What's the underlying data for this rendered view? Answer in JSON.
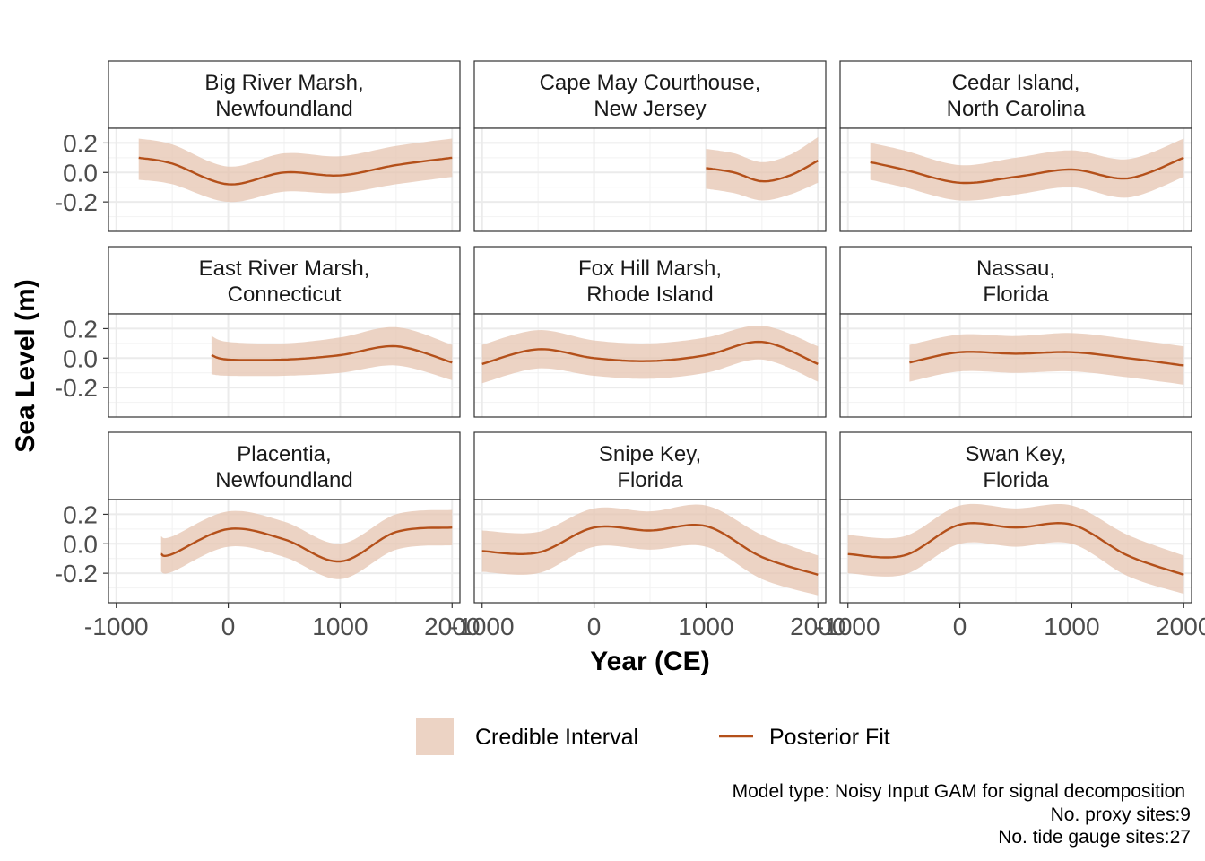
{
  "chart_data": {
    "type": "line",
    "facet_layout": "3x3 grid",
    "xlabel": "Year (CE)",
    "ylabel": "Sea Level (m)",
    "xlim": [
      -1070,
      2070
    ],
    "ylim": [
      -0.4,
      0.3
    ],
    "x_ticks": [
      -1000,
      0,
      1000,
      2000
    ],
    "x_tick_labels": [
      "-1000",
      "0",
      "1000",
      "2000"
    ],
    "y_ticks": [
      -0.2,
      0.0,
      0.2
    ],
    "y_tick_labels": [
      "-0.2",
      "0.0",
      "0.2"
    ],
    "grid": true,
    "colors": {
      "line": "#b4501a",
      "band": "#e6c4b0",
      "strip_bg": "#ffffff",
      "panel_border": "#333333",
      "grid": "#ebebeb"
    },
    "panels": [
      {
        "title": "Big River Marsh,\nNewfoundland",
        "title_lines": [
          "Big River Marsh,",
          "Newfoundland"
        ],
        "x": [
          -800,
          -500,
          0,
          500,
          1000,
          1500,
          2000
        ],
        "y": [
          0.1,
          0.06,
          -0.08,
          0.0,
          -0.02,
          0.05,
          0.1
        ],
        "lower": [
          -0.05,
          -0.08,
          -0.2,
          -0.13,
          -0.14,
          -0.08,
          -0.03
        ],
        "upper": [
          0.23,
          0.19,
          0.04,
          0.13,
          0.11,
          0.18,
          0.23
        ]
      },
      {
        "title": "Cape May Courthouse,\nNew Jersey",
        "title_lines": [
          "Cape May Courthouse,",
          "New Jersey"
        ],
        "x": [
          1000,
          1250,
          1500,
          1750,
          2000
        ],
        "y": [
          0.03,
          0.0,
          -0.06,
          -0.02,
          0.08
        ],
        "lower": [
          -0.11,
          -0.14,
          -0.19,
          -0.15,
          -0.07
        ],
        "upper": [
          0.16,
          0.13,
          0.07,
          0.12,
          0.24
        ]
      },
      {
        "title": "Cedar Island,\nNorth Carolina",
        "title_lines": [
          "Cedar Island,",
          "North Carolina"
        ],
        "x": [
          -800,
          -500,
          0,
          500,
          1000,
          1500,
          2000
        ],
        "y": [
          0.07,
          0.02,
          -0.07,
          -0.03,
          0.02,
          -0.04,
          0.1
        ],
        "lower": [
          -0.05,
          -0.1,
          -0.19,
          -0.15,
          -0.1,
          -0.17,
          -0.03
        ],
        "upper": [
          0.2,
          0.15,
          0.05,
          0.1,
          0.15,
          0.09,
          0.23
        ]
      },
      {
        "title": "East River Marsh,\nConnecticut",
        "title_lines": [
          "East River Marsh,",
          "Connecticut"
        ],
        "x": [
          -150,
          0,
          500,
          1000,
          1500,
          2000
        ],
        "y": [
          0.02,
          -0.01,
          -0.01,
          0.02,
          0.08,
          -0.03
        ],
        "lower": [
          -0.11,
          -0.12,
          -0.12,
          -0.1,
          -0.05,
          -0.15
        ],
        "upper": [
          0.15,
          0.11,
          0.1,
          0.14,
          0.21,
          0.09
        ]
      },
      {
        "title": "Fox Hill Marsh,\nRhode Island",
        "title_lines": [
          "Fox Hill Marsh,",
          "Rhode Island"
        ],
        "x": [
          -1000,
          -500,
          0,
          500,
          1000,
          1500,
          2000
        ],
        "y": [
          -0.04,
          0.06,
          0.0,
          -0.02,
          0.02,
          0.11,
          -0.04
        ],
        "lower": [
          -0.17,
          -0.07,
          -0.12,
          -0.14,
          -0.1,
          -0.01,
          -0.16
        ],
        "upper": [
          0.09,
          0.19,
          0.12,
          0.1,
          0.14,
          0.22,
          0.08
        ]
      },
      {
        "title": "Nassau,\nFlorida",
        "title_lines": [
          "Nassau,",
          "Florida"
        ],
        "x": [
          -450,
          0,
          500,
          1000,
          1500,
          2000
        ],
        "y": [
          -0.03,
          0.04,
          0.03,
          0.04,
          0.0,
          -0.05
        ],
        "lower": [
          -0.16,
          -0.09,
          -0.1,
          -0.09,
          -0.13,
          -0.18
        ],
        "upper": [
          0.09,
          0.16,
          0.15,
          0.17,
          0.13,
          0.08
        ]
      },
      {
        "title": "Placentia,\nNewfoundland",
        "title_lines": [
          "Placentia,",
          "Newfoundland"
        ],
        "x": [
          -600,
          -500,
          0,
          500,
          1000,
          1500,
          2000
        ],
        "y": [
          -0.07,
          -0.07,
          0.1,
          0.03,
          -0.12,
          0.08,
          0.11
        ],
        "lower": [
          -0.19,
          -0.19,
          -0.02,
          -0.09,
          -0.24,
          -0.04,
          -0.01
        ],
        "upper": [
          0.05,
          0.05,
          0.22,
          0.15,
          0.0,
          0.2,
          0.23
        ]
      },
      {
        "title": "Snipe Key,\nFlorida",
        "title_lines": [
          "Snipe Key,",
          "Florida"
        ],
        "x": [
          -1000,
          -500,
          0,
          500,
          1000,
          1500,
          2000
        ],
        "y": [
          -0.05,
          -0.06,
          0.11,
          0.09,
          0.12,
          -0.09,
          -0.21
        ],
        "lower": [
          -0.19,
          -0.2,
          -0.02,
          -0.04,
          -0.02,
          -0.24,
          -0.35
        ],
        "upper": [
          0.09,
          0.08,
          0.24,
          0.22,
          0.26,
          0.06,
          -0.08
        ]
      },
      {
        "title": "Swan Key,\nFlorida",
        "title_lines": [
          "Swan Key,",
          "Florida"
        ],
        "x": [
          -1000,
          -500,
          0,
          500,
          1000,
          1500,
          2000
        ],
        "y": [
          -0.07,
          -0.08,
          0.13,
          0.11,
          0.13,
          -0.08,
          -0.21
        ],
        "lower": [
          -0.2,
          -0.21,
          0.0,
          -0.02,
          0.0,
          -0.22,
          -0.34
        ],
        "upper": [
          0.06,
          0.05,
          0.26,
          0.24,
          0.26,
          0.06,
          -0.08
        ]
      }
    ],
    "legend": {
      "placement": "bottom",
      "band_label": "Credible Interval",
      "line_label": "Posterior Fit"
    },
    "caption": [
      "Model type: Noisy Input GAM for signal decomposition",
      "No. proxy sites:9",
      "No. tide gauge sites:27"
    ]
  }
}
